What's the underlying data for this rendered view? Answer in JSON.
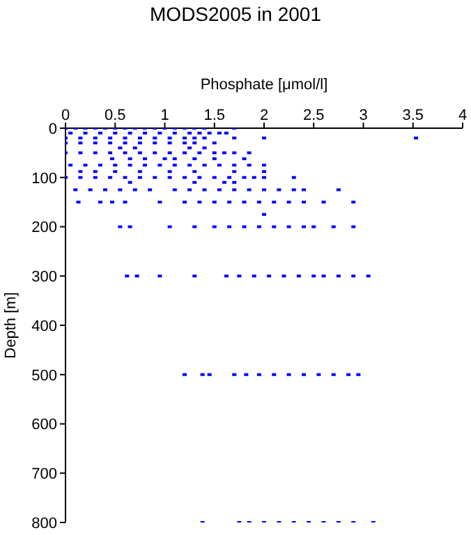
{
  "chart_data": {
    "type": "scatter",
    "title": "MODS2005 in 2001",
    "xlabel": "Phosphate [μmol/l]",
    "ylabel": "Depth [m]",
    "xlim": [
      0,
      4
    ],
    "xticks": [
      0,
      0.5,
      1,
      1.5,
      2,
      2.5,
      3,
      3.5,
      4
    ],
    "ylim": [
      800,
      0
    ],
    "yticks": [
      0,
      100,
      200,
      300,
      400,
      500,
      600,
      700,
      800
    ],
    "marker": "square",
    "series": [
      {
        "color": "#0000ff",
        "x": [
          0,
          0.1,
          0.2,
          0.3,
          0.4,
          0.5,
          0.6,
          0.7,
          0.8,
          0.9,
          1.0,
          1.1,
          1.2,
          1.3,
          1.4,
          1.7
        ],
        "values": [
          0,
          0,
          0,
          0,
          0,
          0,
          0,
          0,
          0,
          0,
          0,
          0,
          0,
          0,
          0,
          0
        ]
      },
      {
        "color": "#0000ff",
        "x": [
          0.05,
          0.2,
          0.35,
          0.5,
          0.65,
          0.8,
          0.95,
          1.1,
          1.25,
          1.35,
          1.45,
          1.55,
          1.62
        ],
        "values": [
          10,
          10,
          10,
          10,
          10,
          10,
          10,
          10,
          10,
          10,
          10,
          10,
          10
        ]
      },
      {
        "color": "#0000ff",
        "x": [
          0,
          0.15,
          0.3,
          0.45,
          0.6,
          0.75,
          0.9,
          1.05,
          1.2,
          1.3,
          1.4,
          1.7,
          2.0,
          3.53
        ],
        "values": [
          20,
          20,
          20,
          20,
          20,
          20,
          20,
          20,
          20,
          20,
          20,
          20,
          20,
          20
        ]
      },
      {
        "color": "#0000ff",
        "x": [
          0,
          0.15,
          0.3,
          0.45,
          0.6,
          0.75,
          0.9,
          1.05,
          1.2,
          1.3,
          1.5
        ],
        "values": [
          30,
          30,
          30,
          30,
          30,
          30,
          30,
          30,
          30,
          30,
          30
        ]
      },
      {
        "color": "#0000ff",
        "x": [
          0.55,
          0.7,
          1.25,
          1.4
        ],
        "values": [
          40,
          40,
          40,
          40
        ]
      },
      {
        "color": "#0000ff",
        "x": [
          0,
          0.15,
          0.3,
          0.45,
          0.6,
          0.75,
          0.9,
          1.05,
          1.2,
          1.35,
          1.5,
          1.6,
          1.7,
          1.85
        ],
        "values": [
          50,
          50,
          50,
          50,
          50,
          50,
          50,
          50,
          50,
          50,
          50,
          50,
          50,
          50
        ]
      },
      {
        "color": "#0000ff",
        "x": [
          0.47,
          0.65,
          0.8,
          1.0,
          1.1,
          1.3,
          1.5,
          1.8
        ],
        "values": [
          62,
          62,
          62,
          62,
          62,
          62,
          62,
          62
        ]
      },
      {
        "color": "#0000ff",
        "x": [
          0.05,
          0.2,
          0.35,
          0.5,
          0.65,
          0.8,
          0.95,
          1.1,
          1.25,
          1.4,
          1.55,
          1.7,
          1.85,
          2.0
        ],
        "values": [
          75,
          75,
          75,
          75,
          75,
          75,
          75,
          75,
          75,
          75,
          75,
          75,
          75,
          75
        ]
      },
      {
        "color": "#0000ff",
        "x": [
          0.15,
          0.3,
          0.5,
          0.75,
          1.05,
          1.3,
          1.7,
          2.0
        ],
        "values": [
          88,
          88,
          88,
          88,
          88,
          88,
          88,
          88
        ]
      },
      {
        "color": "#0000ff",
        "x": [
          0,
          0.15,
          0.3,
          0.45,
          0.6,
          0.75,
          0.9,
          1.05,
          1.2,
          1.35,
          1.5,
          1.65,
          1.8,
          1.9,
          2.0,
          2.3
        ],
        "values": [
          100,
          100,
          100,
          100,
          100,
          100,
          100,
          100,
          100,
          100,
          100,
          100,
          100,
          100,
          100,
          100
        ]
      },
      {
        "color": "#0000ff",
        "x": [
          0.65,
          1.3,
          1.6,
          1.7
        ],
        "values": [
          110,
          110,
          110,
          110
        ]
      },
      {
        "color": "#0000ff",
        "x": [
          0.1,
          0.25,
          0.4,
          0.55,
          0.7,
          0.85,
          1.1,
          1.25,
          1.4,
          1.55,
          1.7,
          1.85,
          2.0,
          2.15,
          2.3,
          2.4,
          2.75
        ],
        "values": [
          125,
          125,
          125,
          125,
          125,
          125,
          125,
          125,
          125,
          125,
          125,
          125,
          125,
          125,
          125,
          125,
          125
        ]
      },
      {
        "color": "#0000ff",
        "x": [
          0.13,
          0.35,
          0.47,
          0.6,
          0.95,
          1.2,
          1.35,
          1.5,
          1.65,
          1.8,
          1.95,
          2.1,
          2.25,
          2.4,
          2.6,
          2.9
        ],
        "values": [
          150,
          150,
          150,
          150,
          150,
          150,
          150,
          150,
          150,
          150,
          150,
          150,
          150,
          150,
          150,
          150
        ]
      },
      {
        "color": "#0000ff",
        "x": [
          2.0
        ],
        "values": [
          175
        ]
      },
      {
        "color": "#0000ff",
        "x": [
          0.55,
          0.65,
          1.05,
          1.3,
          1.5,
          1.65,
          1.8,
          1.95,
          2.1,
          2.25,
          2.4,
          2.5,
          2.7,
          2.9
        ],
        "values": [
          200,
          200,
          200,
          200,
          200,
          200,
          200,
          200,
          200,
          200,
          200,
          200,
          200,
          200
        ]
      },
      {
        "color": "#0000ff",
        "x": [
          0.62,
          0.72,
          0.95,
          1.3,
          1.62,
          1.75,
          1.9,
          2.05,
          2.2,
          2.35,
          2.5,
          2.6,
          2.75,
          2.9,
          3.05
        ],
        "values": [
          300,
          300,
          300,
          300,
          300,
          300,
          300,
          300,
          300,
          300,
          300,
          300,
          300,
          300,
          300
        ]
      },
      {
        "color": "#0000ff",
        "x": [
          1.2,
          1.38,
          1.45,
          1.7,
          1.82,
          1.95,
          2.1,
          2.25,
          2.4,
          2.55,
          2.7,
          2.85,
          2.95
        ],
        "values": [
          500,
          500,
          500,
          500,
          500,
          500,
          500,
          500,
          500,
          500,
          500,
          500,
          500
        ]
      },
      {
        "color": "#0000ff",
        "x": [
          1.38,
          1.75,
          1.85,
          2.0,
          2.15,
          2.3,
          2.45,
          2.6,
          2.75,
          2.9,
          3.1
        ],
        "values": [
          800,
          800,
          800,
          800,
          800,
          800,
          800,
          800,
          800,
          800,
          800
        ]
      }
    ]
  }
}
